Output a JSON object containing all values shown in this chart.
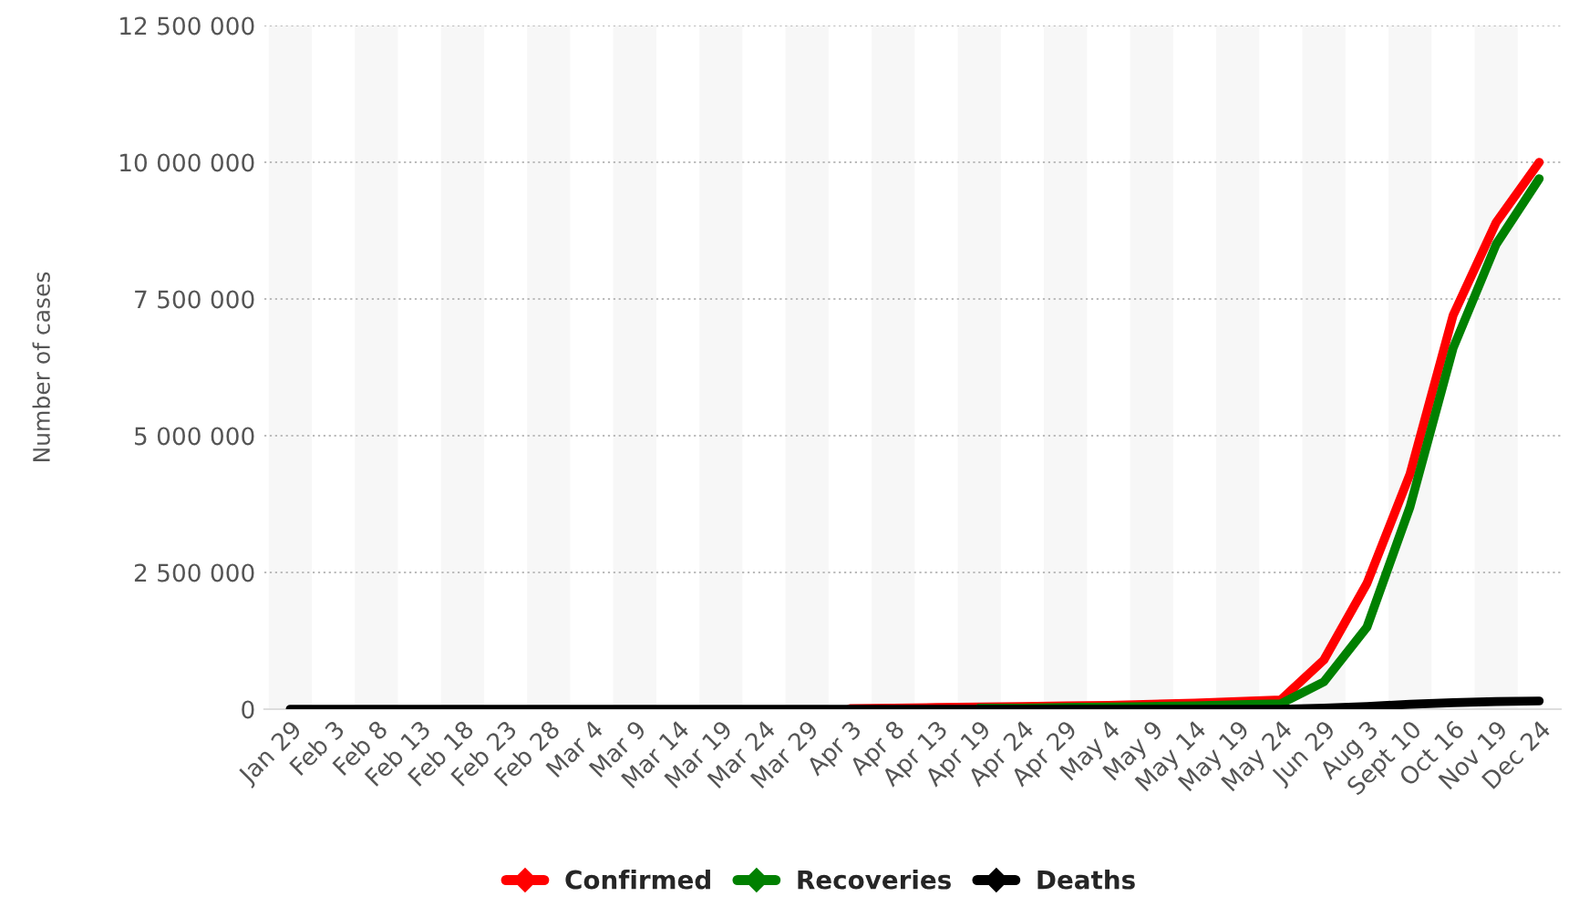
{
  "chart_data": {
    "type": "line",
    "ylabel": "Number of cases",
    "categories": [
      "Jan 29",
      "Feb 3",
      "Feb 8",
      "Feb 13",
      "Feb 18",
      "Feb 23",
      "Feb 28",
      "Mar 4",
      "Mar 9",
      "Mar 14",
      "Mar 19",
      "Mar 24",
      "Mar 29",
      "Apr 3",
      "Apr 8",
      "Apr 13",
      "Apr 19",
      "Apr 24",
      "Apr 29",
      "May 4",
      "May 9",
      "May 14",
      "May 19",
      "May 24",
      "Jun 29",
      "Aug 3",
      "Sept 10",
      "Oct 16",
      "Nov 19",
      "Dec 24"
    ],
    "series": [
      {
        "name": "Confirmed",
        "color": "#ff0000",
        "values": [
          null,
          null,
          null,
          null,
          null,
          null,
          null,
          null,
          null,
          null,
          null,
          null,
          null,
          10000,
          20000,
          30000,
          40000,
          50000,
          60000,
          70000,
          90000,
          110000,
          140000,
          170000,
          900000,
          2300000,
          4300000,
          7200000,
          8900000,
          10000000
        ]
      },
      {
        "name": "Recoveries",
        "color": "#008000",
        "values": [
          null,
          null,
          null,
          null,
          null,
          null,
          null,
          null,
          null,
          null,
          null,
          null,
          null,
          null,
          null,
          null,
          20000,
          20000,
          30000,
          40000,
          50000,
          60000,
          80000,
          100000,
          500000,
          1500000,
          3700000,
          6600000,
          8500000,
          9700000
        ]
      },
      {
        "name": "Deaths",
        "color": "#000000",
        "values": [
          0,
          0,
          0,
          0,
          0,
          0,
          0,
          0,
          0,
          0,
          0,
          0,
          0,
          0,
          0,
          0,
          0,
          0,
          0,
          0,
          0,
          0,
          0,
          0,
          20000,
          50000,
          90000,
          120000,
          140000,
          150000
        ]
      }
    ],
    "ylim": [
      0,
      12500000
    ],
    "yticks": [
      {
        "value": 0,
        "label": "0"
      },
      {
        "value": 2500000,
        "label": "2 500 000"
      },
      {
        "value": 5000000,
        "label": "5 000 000"
      },
      {
        "value": 7500000,
        "label": "7 500 000"
      },
      {
        "value": 10000000,
        "label": "10 000 000"
      },
      {
        "value": 12500000,
        "label": "12 500 000"
      }
    ],
    "grid": "y",
    "legend": "bottom",
    "marker": "none",
    "line_style": "solid"
  }
}
